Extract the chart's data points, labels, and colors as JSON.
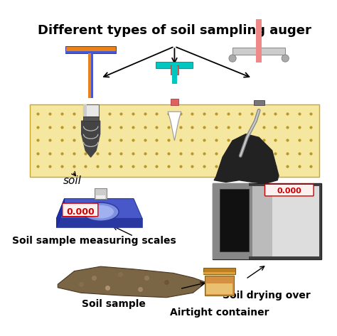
{
  "title": "Different types of soil sampling auger",
  "label_soil": "soil",
  "label_scales": "Soil sample measuring scales",
  "label_sample": "Soil sample",
  "label_airtight": "Airtight container",
  "label_drying": "Soil drying over",
  "display_value": "0.000",
  "bg_color": "#ffffff",
  "soil_layer_color": "#f5e6a0",
  "soil_dot_color": "#b89828",
  "auger1_orange": "#e8821a",
  "auger1_blue": "#4858d0",
  "auger2_teal": "#00c8c0",
  "auger2_pink": "#e06060",
  "auger3_pink": "#f08888",
  "scale_blue": "#4858c8",
  "scale_blue_dark": "#2838a0",
  "oven_dark": "#404040",
  "oven_mid": "#888888",
  "oven_light": "#bbbbbb",
  "oven_lighter": "#dddddd",
  "container_orange": "#d49040",
  "container_cream": "#e8c070"
}
